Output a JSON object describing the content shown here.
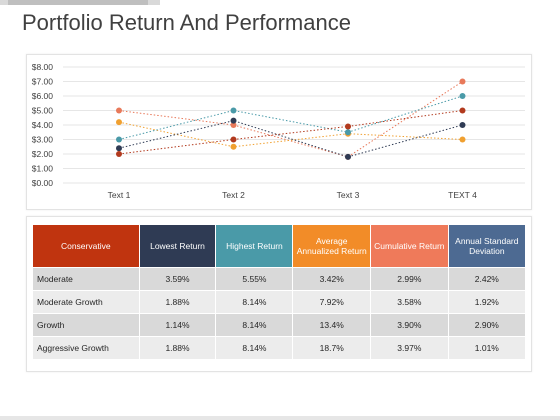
{
  "page": {
    "title": "Portfolio Return And Performance"
  },
  "chart_data": {
    "type": "line",
    "categories": [
      "Text 1",
      "Text  2",
      "Text  3",
      "TEXT 4"
    ],
    "yticks": [
      "$0.00",
      "$1.00",
      "$2.00",
      "$3.00",
      "$4.00",
      "$5.00",
      "$6.00",
      "$7.00",
      "$8.00"
    ],
    "ylim": [
      0,
      8
    ],
    "grid": true,
    "line_style": "dotted",
    "series": [
      {
        "color": "#e8795a",
        "values": [
          5.0,
          4.0,
          1.8,
          7.0
        ]
      },
      {
        "color": "#f0a030",
        "values": [
          4.2,
          2.5,
          3.4,
          3.0
        ]
      },
      {
        "color": "#4a9aa8",
        "values": [
          3.0,
          5.0,
          3.5,
          6.0
        ]
      },
      {
        "color": "#2f3b54",
        "values": [
          2.4,
          4.3,
          1.8,
          4.0
        ]
      },
      {
        "color": "#b23a1e",
        "values": [
          2.0,
          3.0,
          3.9,
          5.0
        ]
      }
    ]
  },
  "table": {
    "headers": [
      {
        "label": "Conservative",
        "color": "#c0340f"
      },
      {
        "label": "Lowest Return",
        "color": "#2f3b54"
      },
      {
        "label": "Highest Return",
        "color": "#4a9aa8"
      },
      {
        "label": "Average Annualized Return",
        "color": "#f28c28"
      },
      {
        "label": "Cumulative Return",
        "color": "#ef7a5a"
      },
      {
        "label": "Annual Standard Deviation",
        "color": "#4d6a92"
      }
    ],
    "rows": [
      [
        "Moderate",
        "3.59%",
        "5.55%",
        "3.42%",
        "2.99%",
        "2.42%"
      ],
      [
        "Moderate Growth",
        "1.88%",
        "8.14%",
        "7.92%",
        "3.58%",
        "1.92%"
      ],
      [
        "Growth",
        "1.14%",
        "8.14%",
        "13.4%",
        "3.90%",
        "2.90%"
      ],
      [
        "Aggressive Growth",
        "1.88%",
        "8.14%",
        "18.7%",
        "3.97%",
        "1.01%"
      ]
    ]
  }
}
